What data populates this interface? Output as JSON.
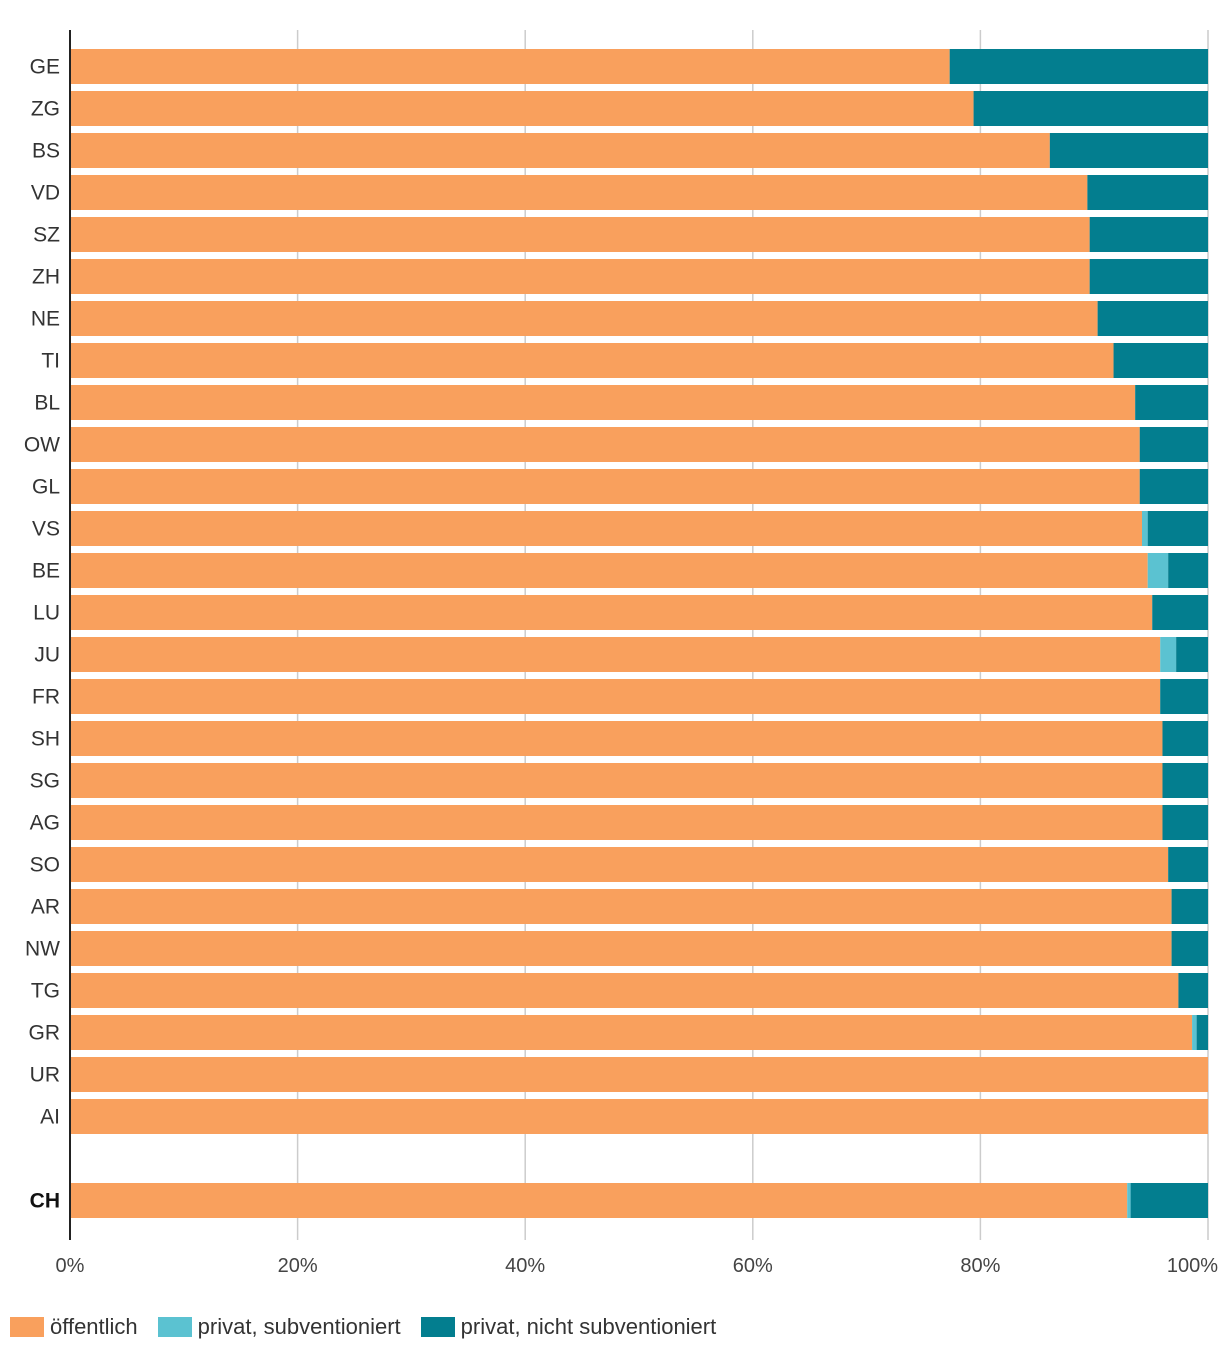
{
  "chart_data": {
    "type": "bar",
    "orientation": "horizontal",
    "stacked": true,
    "categories": [
      "GE",
      "ZG",
      "BS",
      "VD",
      "SZ",
      "ZH",
      "NE",
      "TI",
      "BL",
      "OW",
      "GL",
      "VS",
      "BE",
      "LU",
      "JU",
      "FR",
      "SH",
      "SG",
      "AG",
      "SO",
      "AR",
      "NW",
      "TG",
      "GR",
      "UR",
      "AI",
      "CH"
    ],
    "series": [
      {
        "name": "öffentlich",
        "color": "#F9A05D",
        "values": [
          77.3,
          79.4,
          86.1,
          89.4,
          89.6,
          89.6,
          90.3,
          91.7,
          93.6,
          94.0,
          94.0,
          94.2,
          94.7,
          95.1,
          95.8,
          95.8,
          96.0,
          96.0,
          96.0,
          96.5,
          96.8,
          96.8,
          97.4,
          98.6,
          100,
          100,
          92.9
        ]
      },
      {
        "name": "privat, subventioniert",
        "color": "#5BC2D1",
        "values": [
          0,
          0,
          0,
          0,
          0,
          0,
          0,
          0,
          0,
          0,
          0,
          0.5,
          1.8,
          0,
          1.4,
          0,
          0,
          0,
          0,
          0,
          0,
          0,
          0,
          0.4,
          0,
          0,
          0.3
        ]
      },
      {
        "name": "privat, nicht subventioniert",
        "color": "#037E8F",
        "values": [
          22.7,
          20.6,
          13.9,
          10.6,
          10.4,
          10.4,
          9.7,
          8.3,
          6.4,
          6.0,
          6.0,
          5.3,
          3.5,
          4.9,
          2.8,
          4.2,
          4.0,
          4.0,
          4.0,
          3.5,
          3.2,
          3.2,
          2.6,
          1.0,
          0,
          0,
          6.8
        ]
      }
    ],
    "total_category": "CH",
    "xlim": [
      0,
      100
    ],
    "x_ticks": [
      "0%",
      "20%",
      "40%",
      "60%",
      "80%",
      "100%"
    ],
    "x_tick_values": [
      0,
      20,
      40,
      60,
      80,
      100
    ],
    "grid": true,
    "legend_position": "bottom-left",
    "title": "",
    "xlabel": "",
    "ylabel": ""
  }
}
